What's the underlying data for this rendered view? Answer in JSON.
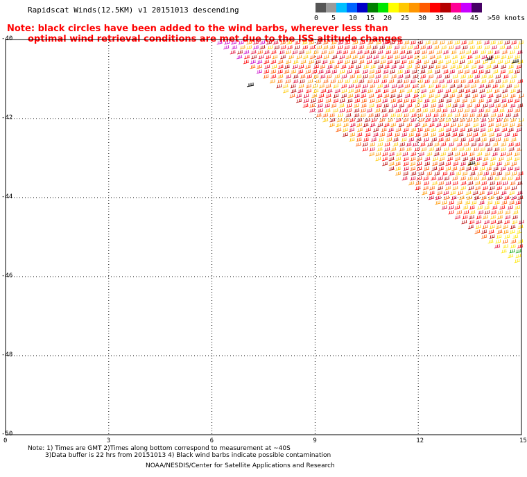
{
  "title": "Rapidscat Winds(12.5KM) v1 20151013 descending",
  "note": {
    "line1": "Note: black circles have been added to the wind barbs, wherever less than",
    "line2": "optimal wind retrieval conditions are met due to the ISS altitude changes"
  },
  "legend": {
    "colors": [
      "#555555",
      "#9a9a9a",
      "#00bfff",
      "#0064ff",
      "#0000c8",
      "#008000",
      "#00e600",
      "#ffff00",
      "#ffc800",
      "#ff9600",
      "#ff5a00",
      "#ff0000",
      "#b40000",
      "#ff0096",
      "#c800ff",
      "#460064"
    ],
    "labels": [
      "0",
      "5",
      "10",
      "15",
      "20",
      "25",
      "30",
      "35",
      "40",
      "45",
      ">50 knots"
    ]
  },
  "axes": {
    "x_ticks": [
      "0",
      "3",
      "6",
      "9",
      "12",
      "15"
    ],
    "y_ticks": [
      "-40",
      "-42",
      "-44",
      "-46",
      "-48",
      "-50"
    ]
  },
  "footer": {
    "line1": "Note: 1) Times are GMT 2)Times along bottom correspond to measurement at ~40S",
    "line2": "3)Data buffer is 22 hrs from 20151013 4) Black wind barbs indicate possible contamination",
    "line3": "NOAA/NESDIS/Center for Satellite Applications and Research"
  }
}
